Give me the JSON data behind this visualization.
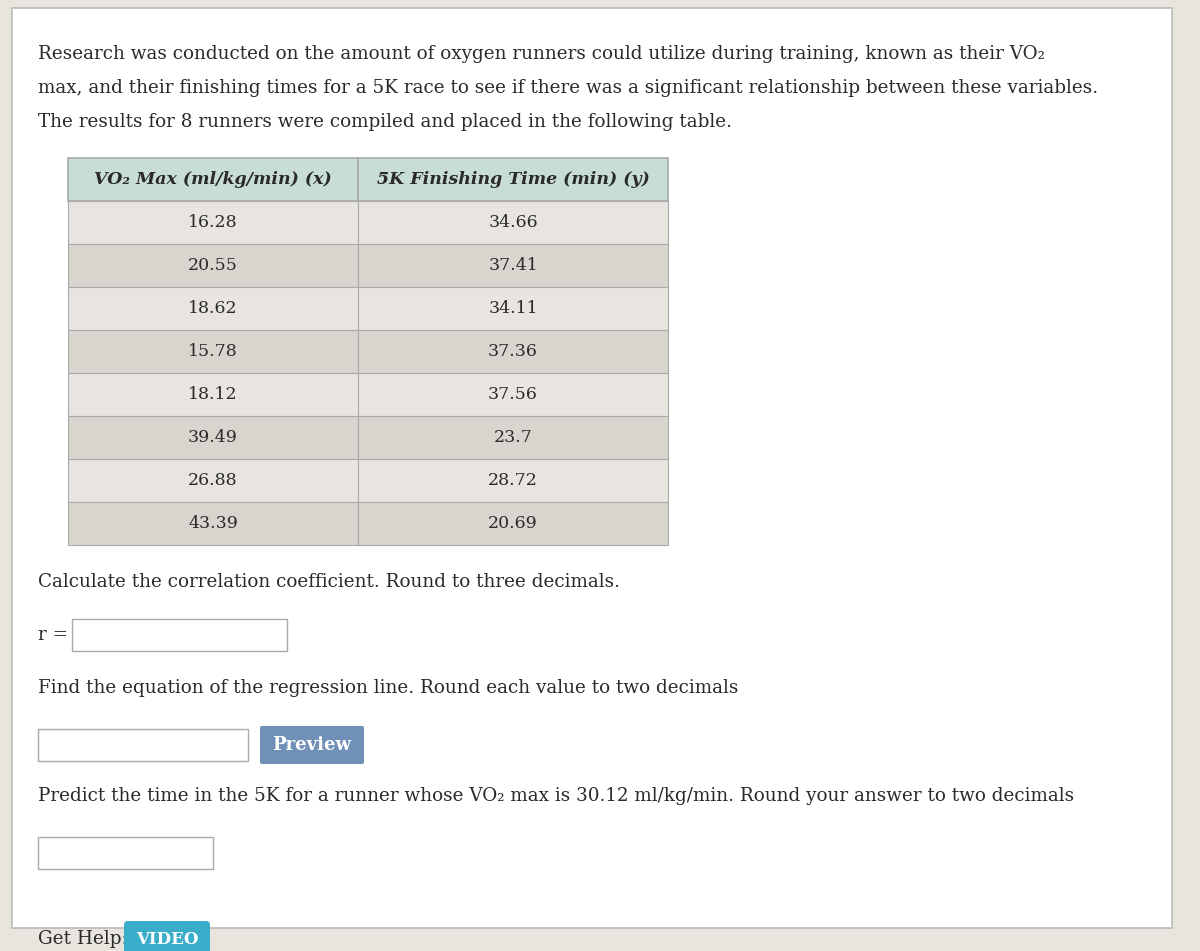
{
  "col1_header": "VO₂ Max (ml/kg/min) (x)",
  "col2_header": "5K Finishing Time (min) (y)",
  "vo2_values": [
    16.28,
    20.55,
    18.62,
    15.78,
    18.12,
    39.49,
    26.88,
    43.39
  ],
  "time_values": [
    34.66,
    37.41,
    34.11,
    37.36,
    37.56,
    23.7,
    28.72,
    20.69
  ],
  "corr_label": "Calculate the correlation coefficient. Round to three decimals.",
  "r_label": "r =",
  "regression_label": "Find the equation of the regression line. Round each value to two decimals",
  "preview_btn": "Preview",
  "predict_line": "Predict the time in the 5K for a runner whose VO₂ max is 30.12 ml/kg/min. Round your answer to two decimals",
  "get_help_label": "Get Help:",
  "video_btn": "VIDEO",
  "bg_color": "#e8e4de",
  "white_bg": "#ffffff",
  "table_header_bg": "#c8ddd8",
  "table_row_light": "#e8e5e0",
  "table_row_dark": "#d8d4ce",
  "table_border": "#aaaaaa",
  "preview_btn_color": "#7090b8",
  "video_btn_color": "#3aadca",
  "text_color": "#2a2a2a",
  "input_bg": "#e8e5e0",
  "input_border": "#aaaaaa",
  "outer_bg": "#ffffff",
  "outer_border": "#bbbbbb",
  "intro_line1": "Research was conducted on the amount of oxygen runners could utilize during training, known as their VO₂",
  "intro_line2": "max, and their finishing times for a 5K race to see if there was a significant relationship between these variables.",
  "intro_line3": "The results for 8 runners were compiled and placed in the following table."
}
